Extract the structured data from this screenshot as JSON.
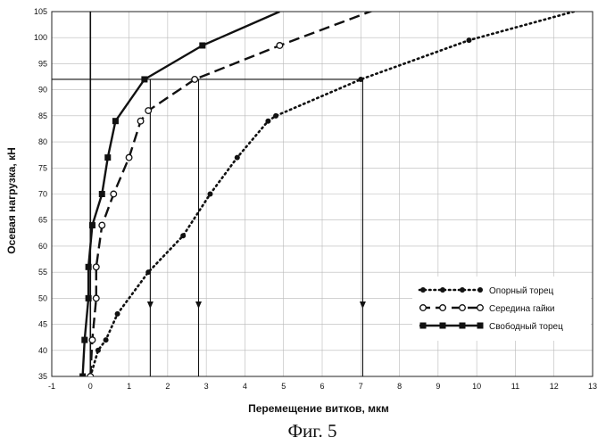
{
  "chart_data": {
    "type": "line",
    "title": "",
    "caption": "Фиг. 5",
    "xlabel": "Перемещение витков, мкм",
    "ylabel": "Осевая нагрузка, кН",
    "xlim": [
      -1,
      13
    ],
    "ylim": [
      35,
      105
    ],
    "x_ticks": [
      -1,
      0,
      1,
      2,
      3,
      4,
      5,
      6,
      7,
      8,
      9,
      10,
      11,
      12,
      13
    ],
    "y_ticks": [
      35,
      40,
      45,
      50,
      55,
      60,
      65,
      70,
      75,
      80,
      85,
      90,
      95,
      100,
      105
    ],
    "series": [
      {
        "name": "Опорный торец",
        "style": "dotted",
        "marker": "dot",
        "points": [
          [
            0.0,
            35
          ],
          [
            0.2,
            40
          ],
          [
            0.4,
            42
          ],
          [
            0.7,
            47
          ],
          [
            1.5,
            55
          ],
          [
            2.4,
            62
          ],
          [
            3.1,
            70
          ],
          [
            3.8,
            77
          ],
          [
            4.6,
            84
          ],
          [
            4.8,
            85
          ],
          [
            7.0,
            92
          ],
          [
            9.8,
            99.5
          ],
          [
            13.0,
            106
          ]
        ]
      },
      {
        "name": "Середина гайки",
        "style": "dashed",
        "marker": "open-circle",
        "points": [
          [
            0.0,
            35
          ],
          [
            0.05,
            42
          ],
          [
            0.15,
            50
          ],
          [
            0.15,
            56
          ],
          [
            0.3,
            64
          ],
          [
            0.6,
            70
          ],
          [
            1.0,
            77
          ],
          [
            1.3,
            84
          ],
          [
            1.5,
            86
          ],
          [
            2.7,
            92
          ],
          [
            4.9,
            98.5
          ],
          [
            7.6,
            106
          ]
        ]
      },
      {
        "name": "Свободный торец",
        "style": "solid",
        "marker": "square",
        "points": [
          [
            -0.2,
            35
          ],
          [
            -0.15,
            42
          ],
          [
            -0.05,
            50
          ],
          [
            -0.05,
            56
          ],
          [
            0.05,
            64
          ],
          [
            0.3,
            70
          ],
          [
            0.45,
            77
          ],
          [
            0.65,
            84
          ],
          [
            1.4,
            92
          ],
          [
            2.9,
            98.5
          ],
          [
            4.9,
            105
          ]
        ]
      }
    ],
    "annotations": {
      "horizontal_line_y": 92,
      "arrow_x": [
        1.55,
        2.8,
        7.05
      ],
      "arrow_tip_y": 48
    },
    "legend": {
      "position": "lower-right"
    }
  }
}
